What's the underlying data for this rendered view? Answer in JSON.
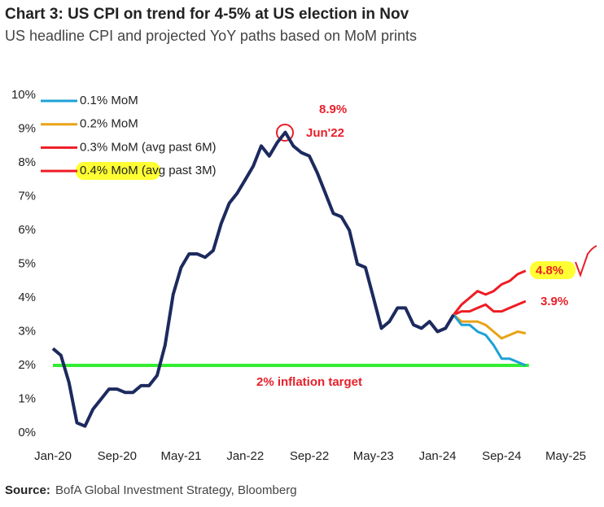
{
  "chart_data": {
    "type": "line",
    "title": "Chart 3: US CPI on trend for 4-5% at US election in Nov",
    "subtitle": "US headline CPI and projected YoY paths based on MoM prints",
    "source_label": "Source:",
    "source": "BofA Global Investment Strategy, Bloomberg",
    "categories": [
      "Jan-20",
      null,
      null,
      null,
      null,
      null,
      null,
      null,
      "Sep-20",
      null,
      null,
      null,
      null,
      null,
      null,
      null,
      "May-21",
      null,
      null,
      null,
      null,
      null,
      null,
      null,
      "Jan-22",
      null,
      null,
      null,
      null,
      null,
      null,
      null,
      "Sep-22",
      null,
      null,
      null,
      null,
      null,
      null,
      null,
      "May-23",
      null,
      null,
      null,
      null,
      null,
      null,
      null,
      "Jan-24",
      null,
      null,
      null,
      null,
      null,
      null,
      null,
      "Sep-24",
      null,
      null,
      null,
      null,
      null,
      null,
      null,
      "May-25"
    ],
    "ylim": [
      0,
      10
    ],
    "yticks": [
      {
        "value": 0,
        "label": "0%"
      },
      {
        "value": 1,
        "label": "1%"
      },
      {
        "value": 2,
        "label": "2%"
      },
      {
        "value": 3,
        "label": "3%"
      },
      {
        "value": 4,
        "label": "4%"
      },
      {
        "value": 5,
        "label": "5%"
      },
      {
        "value": 6,
        "label": "6%"
      },
      {
        "value": 7,
        "label": "7%"
      },
      {
        "value": 8,
        "label": "8%"
      },
      {
        "value": 9,
        "label": "9%"
      },
      {
        "value": 10,
        "label": "10%"
      }
    ],
    "grid": false,
    "series": [
      {
        "color": "#1c2a5e",
        "values": [
          2.5,
          2.3,
          1.5,
          0.3,
          0.2,
          0.7,
          1.0,
          1.3,
          1.3,
          1.2,
          1.2,
          1.4,
          1.4,
          1.7,
          2.6,
          4.1,
          4.9,
          5.3,
          5.3,
          5.2,
          5.4,
          6.2,
          6.8,
          7.1,
          7.5,
          7.9,
          8.5,
          8.2,
          8.6,
          8.9,
          8.5,
          8.3,
          8.2,
          7.7,
          7.1,
          6.5,
          6.4,
          6.0,
          5.0,
          4.9,
          4.0,
          3.1,
          3.3,
          3.7,
          3.7,
          3.2,
          3.1,
          3.3,
          3.0,
          3.1,
          3.5,
          null,
          null,
          null,
          null,
          null,
          null,
          null,
          null,
          null,
          null,
          null,
          null,
          null,
          null
        ]
      },
      {
        "name": "0.1% MoM",
        "color": "#1ea1d6",
        "values": [
          null,
          null,
          null,
          null,
          null,
          null,
          null,
          null,
          null,
          null,
          null,
          null,
          null,
          null,
          null,
          null,
          null,
          null,
          null,
          null,
          null,
          null,
          null,
          null,
          null,
          null,
          null,
          null,
          null,
          null,
          null,
          null,
          null,
          null,
          null,
          null,
          null,
          null,
          null,
          null,
          null,
          null,
          null,
          null,
          null,
          null,
          null,
          null,
          null,
          null,
          3.5,
          3.2,
          3.2,
          3.0,
          2.9,
          2.6,
          2.2,
          2.2,
          2.1,
          2.0,
          null,
          null,
          null,
          null,
          null
        ]
      },
      {
        "name": "0.2% MoM",
        "color": "#e8a317",
        "values": [
          null,
          null,
          null,
          null,
          null,
          null,
          null,
          null,
          null,
          null,
          null,
          null,
          null,
          null,
          null,
          null,
          null,
          null,
          null,
          null,
          null,
          null,
          null,
          null,
          null,
          null,
          null,
          null,
          null,
          null,
          null,
          null,
          null,
          null,
          null,
          null,
          null,
          null,
          null,
          null,
          null,
          null,
          null,
          null,
          null,
          null,
          null,
          null,
          null,
          null,
          3.5,
          3.3,
          3.3,
          3.3,
          3.2,
          3.0,
          2.8,
          2.9,
          3.0,
          2.95,
          null,
          null,
          null,
          null,
          null
        ]
      },
      {
        "name": "0.3% MoM (avg past 6M)",
        "color": "#ee1c24",
        "values": [
          null,
          null,
          null,
          null,
          null,
          null,
          null,
          null,
          null,
          null,
          null,
          null,
          null,
          null,
          null,
          null,
          null,
          null,
          null,
          null,
          null,
          null,
          null,
          null,
          null,
          null,
          null,
          null,
          null,
          null,
          null,
          null,
          null,
          null,
          null,
          null,
          null,
          null,
          null,
          null,
          null,
          null,
          null,
          null,
          null,
          null,
          null,
          null,
          null,
          null,
          3.5,
          3.6,
          3.6,
          3.7,
          3.8,
          3.6,
          3.6,
          3.7,
          3.8,
          3.9,
          null,
          null,
          null,
          null,
          null
        ]
      },
      {
        "name": "0.4% MoM (avg past 3M)",
        "color": "#ee1c24",
        "values": [
          null,
          null,
          null,
          null,
          null,
          null,
          null,
          null,
          null,
          null,
          null,
          null,
          null,
          null,
          null,
          null,
          null,
          null,
          null,
          null,
          null,
          null,
          null,
          null,
          null,
          null,
          null,
          null,
          null,
          null,
          null,
          null,
          null,
          null,
          null,
          null,
          null,
          null,
          null,
          null,
          null,
          null,
          null,
          null,
          null,
          null,
          null,
          null,
          null,
          null,
          3.5,
          3.8,
          4.0,
          4.2,
          4.1,
          4.2,
          4.4,
          4.5,
          4.7,
          4.8,
          null,
          null,
          null,
          null,
          null
        ]
      }
    ],
    "target": {
      "value": 2,
      "label": "2% inflation target",
      "color": "#33ee33"
    },
    "annotations": {
      "peak_value": "8.9%",
      "peak_date": "Jun'22",
      "end_04": "4.8%",
      "end_03": "3.9%"
    }
  }
}
